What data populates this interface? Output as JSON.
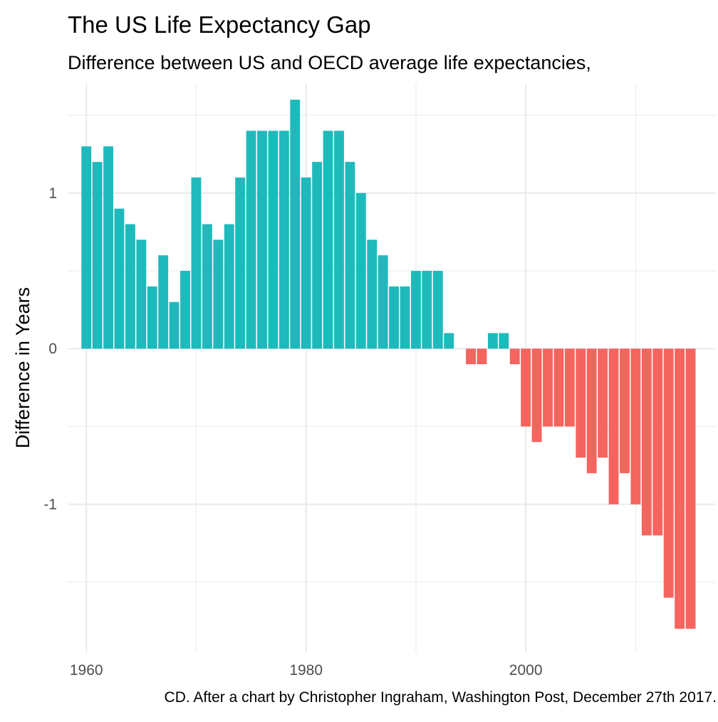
{
  "chart_data": {
    "type": "bar",
    "title": "The US Life Expectancy Gap",
    "subtitle": "Difference between US and OECD average life expectancies,",
    "xlabel": "",
    "ylabel": "Difference in Years",
    "caption": "CD. After a chart by Christopher Ingraham, Washington Post, December 27th 2017.",
    "xlim": [
      1958.3,
      2017.3
    ],
    "ylim": [
      -1.95,
      1.7
    ],
    "x_ticks": [
      1960,
      1980,
      2000
    ],
    "x_tick_labels": [
      "1960",
      "1980",
      "2000"
    ],
    "y_ticks": [
      -1,
      0,
      1
    ],
    "y_tick_labels": [
      "-1",
      "0",
      "1"
    ],
    "grid": true,
    "legend": "none",
    "colors": {
      "positive": "#1ebabb",
      "negative": "#f4655f"
    },
    "x": [
      1960,
      1961,
      1962,
      1963,
      1964,
      1965,
      1966,
      1967,
      1968,
      1969,
      1970,
      1971,
      1972,
      1973,
      1974,
      1975,
      1976,
      1977,
      1978,
      1979,
      1980,
      1981,
      1982,
      1983,
      1984,
      1985,
      1986,
      1987,
      1988,
      1989,
      1990,
      1991,
      1992,
      1993,
      1994,
      1995,
      1996,
      1997,
      1998,
      1999,
      2000,
      2001,
      2002,
      2003,
      2004,
      2005,
      2006,
      2007,
      2008,
      2009,
      2010,
      2011,
      2012,
      2013,
      2014,
      2015
    ],
    "values": [
      1.3,
      1.2,
      1.3,
      0.9,
      0.8,
      0.7,
      0.4,
      0.6,
      0.3,
      0.5,
      1.1,
      0.8,
      0.7,
      0.8,
      1.1,
      1.4,
      1.4,
      1.4,
      1.4,
      1.6,
      1.1,
      1.2,
      1.4,
      1.4,
      1.2,
      1.0,
      0.7,
      0.6,
      0.4,
      0.4,
      0.5,
      0.5,
      0.5,
      0.1,
      0.0,
      -0.1,
      -0.1,
      0.1,
      0.1,
      -0.1,
      -0.5,
      -0.6,
      -0.5,
      -0.5,
      -0.5,
      -0.7,
      -0.8,
      -0.7,
      -1.0,
      -0.8,
      -1.0,
      -1.2,
      -1.2,
      -1.6,
      -1.8,
      -1.8
    ]
  }
}
